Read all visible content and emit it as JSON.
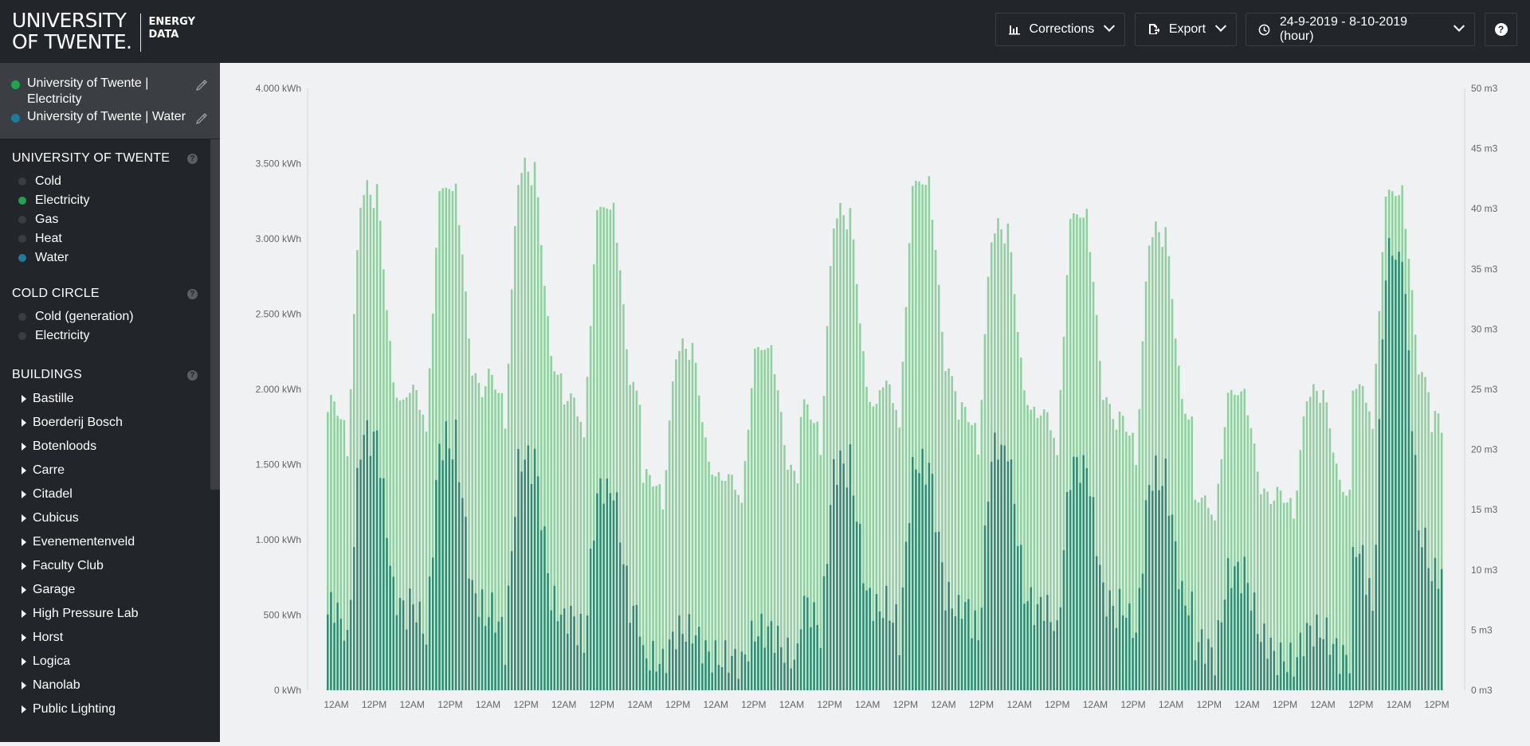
{
  "app": {
    "logo_line1": "UNIVERSITY",
    "logo_line2": "OF TWENTE.",
    "logo_sub1": "ENERGY",
    "logo_sub2": "DATA"
  },
  "toolbar": {
    "corrections_label": "Corrections",
    "export_label": "Export",
    "daterange_label": "24-9-2019 - 8-10-2019 (hour)",
    "help_label": "?"
  },
  "selected": [
    {
      "label": "University of Twente | Electricity",
      "color": "#1ea54a"
    },
    {
      "label": "University of Twente | Water",
      "color": "#1a7da0"
    }
  ],
  "sections": {
    "ut": {
      "title": "UNIVERSITY OF TWENTE",
      "items": [
        {
          "label": "Cold",
          "color": "#3a3e42"
        },
        {
          "label": "Electricity",
          "color": "#1ea54a"
        },
        {
          "label": "Gas",
          "color": "#3a3e42"
        },
        {
          "label": "Heat",
          "color": "#3a3e42"
        },
        {
          "label": "Water",
          "color": "#1a7da0"
        }
      ]
    },
    "cold": {
      "title": "COLD CIRCLE",
      "items": [
        {
          "label": "Cold (generation)",
          "color": "#3a3e42"
        },
        {
          "label": "Electricity",
          "color": "#3a3e42"
        }
      ]
    },
    "buildings": {
      "title": "BUILDINGS",
      "items": [
        "Bastille",
        "Boerderij Bosch",
        "Botenloods",
        "Carre",
        "Citadel",
        "Cubicus",
        "Evenementenveld",
        "Faculty Club",
        "Garage",
        "High Pressure Lab",
        "Horst",
        "Logica",
        "Nanolab",
        "Public Lighting"
      ]
    }
  },
  "chart_data": {
    "type": "bar",
    "left_axis": {
      "unit": "kWh",
      "ylim": [
        0,
        4000
      ],
      "ticks": [
        "0 kWh",
        "500 kWh",
        "1.000 kWh",
        "1.500 kWh",
        "2.000 kWh",
        "2.500 kWh",
        "3.000 kWh",
        "3.500 kWh",
        "4.000 kWh"
      ]
    },
    "right_axis": {
      "unit": "m3",
      "ylim": [
        0,
        50
      ],
      "ticks": [
        "0 m3",
        "5 m3",
        "10 m3",
        "15 m3",
        "20 m3",
        "25 m3",
        "30 m3",
        "35 m3",
        "40 m3",
        "45 m3",
        "50 m3"
      ]
    },
    "x_ticks": [
      "12AM",
      "12PM",
      "12AM",
      "12PM",
      "12AM",
      "12PM",
      "12AM",
      "12PM",
      "12AM",
      "12PM",
      "12AM",
      "12PM",
      "12AM",
      "12PM",
      "12AM",
      "12PM",
      "12AM",
      "12PM",
      "12AM",
      "12PM",
      "12AM",
      "12PM",
      "12AM",
      "12PM",
      "12AM",
      "12PM",
      "12AM",
      "12PM",
      "12AM",
      "12PM"
    ],
    "series": [
      {
        "name": "University of Twente | Electricity",
        "color": "#8fd19e",
        "axis": "left",
        "day_peaks": [
          3350,
          3380,
          3500,
          3250,
          2300,
          2300,
          3200,
          3420,
          3100,
          3200,
          3080,
          2000,
          2000,
          3350,
          3420
        ],
        "night_base": [
          2200,
          2350,
          2450,
          2300,
          1700,
          1700,
          2200,
          2400,
          2200,
          2150,
          2100,
          1550,
          1600,
          2400,
          2000
        ]
      },
      {
        "name": "University of Twente | Water",
        "color": "#2a8a6e",
        "axis": "right",
        "day_peaks": [
          21.5,
          21,
          19.5,
          17,
          5,
          5,
          19,
          19,
          20.5,
          19,
          18,
          10,
          5,
          37,
          24
        ],
        "night_base": [
          5,
          5.5,
          5,
          5,
          3,
          3,
          6,
          6,
          5.5,
          6,
          6,
          3.5,
          3,
          8,
          9
        ]
      }
    ]
  }
}
